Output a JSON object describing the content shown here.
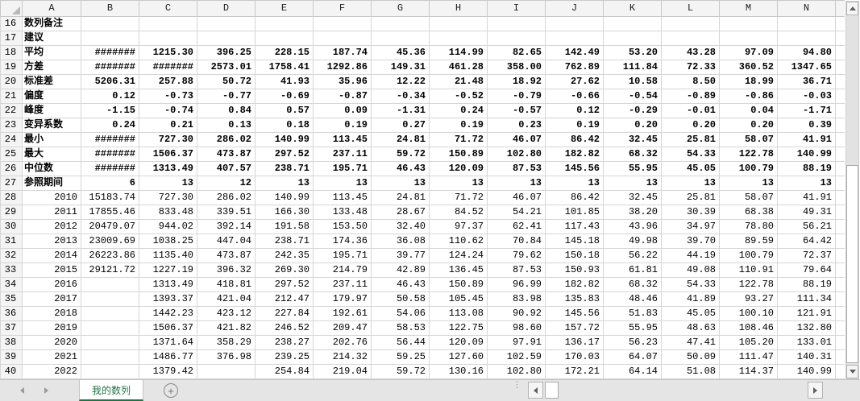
{
  "app": {
    "title": "spreadsheet-statistics-view"
  },
  "colors": {
    "accent_green": "#217346",
    "blue_value_text": "#1414cc",
    "grid_line": "#d6d6d6",
    "header_bg": "#f4f4f4",
    "tab_bar_bg": "#e5e5e5"
  },
  "icons": {
    "add_sheet": "+",
    "tab_splitter": "⋮",
    "select_all_corner": "corner-triangle",
    "scroll_arrows": "triangle-glyphs"
  },
  "grid": {
    "column_headers": [
      "A",
      "B",
      "C",
      "D",
      "E",
      "F",
      "G",
      "H",
      "I",
      "J",
      "K",
      "L",
      "M",
      "N"
    ],
    "rows": [
      {
        "num": "16",
        "a": "数列备注",
        "bold": true,
        "cells": [
          "",
          "",
          "",
          "",
          "",
          "",
          "",
          "",
          "",
          "",
          "",
          "",
          ""
        ]
      },
      {
        "num": "17",
        "a": "建议",
        "bold": true,
        "cells": [
          "",
          "",
          "",
          "",
          "",
          "",
          "",
          "",
          "",
          "",
          "",
          "",
          ""
        ]
      },
      {
        "num": "18",
        "a": "平均",
        "bold": true,
        "cells": [
          "#######",
          "1215.30",
          "396.25",
          "228.15",
          "187.74",
          "45.36",
          "114.99",
          "82.65",
          "142.49",
          "53.20",
          "43.28",
          "97.09",
          "94.80"
        ]
      },
      {
        "num": "19",
        "a": "方差",
        "bold": true,
        "cells": [
          "#######",
          "#######",
          "2573.01",
          "1758.41",
          "1292.86",
          "149.31",
          "461.28",
          "358.00",
          "762.89",
          "111.84",
          "72.33",
          "360.52",
          "1347.65"
        ]
      },
      {
        "num": "20",
        "a": "标准差",
        "bold": true,
        "cells": [
          "5206.31",
          "257.88",
          "50.72",
          "41.93",
          "35.96",
          "12.22",
          "21.48",
          "18.92",
          "27.62",
          "10.58",
          "8.50",
          "18.99",
          "36.71"
        ]
      },
      {
        "num": "21",
        "a": "偏度",
        "bold": true,
        "cells": [
          "0.12",
          "-0.73",
          "-0.77",
          "-0.69",
          "-0.87",
          "-0.34",
          "-0.52",
          "-0.79",
          "-0.66",
          "-0.54",
          "-0.89",
          "-0.86",
          "-0.03"
        ]
      },
      {
        "num": "22",
        "a": "峰度",
        "bold": true,
        "cells": [
          "-1.15",
          "-0.74",
          "0.84",
          "0.57",
          "0.09",
          "-1.31",
          "0.24",
          "-0.57",
          "0.12",
          "-0.29",
          "-0.01",
          "0.04",
          "-1.71"
        ]
      },
      {
        "num": "23",
        "a": "变异系数",
        "bold": true,
        "cells": [
          "0.24",
          "0.21",
          "0.13",
          "0.18",
          "0.19",
          "0.27",
          "0.19",
          "0.23",
          "0.19",
          "0.20",
          "0.20",
          "0.20",
          "0.39"
        ]
      },
      {
        "num": "24",
        "a": "最小",
        "bold": true,
        "cells": [
          "#######",
          "727.30",
          "286.02",
          "140.99",
          "113.45",
          "24.81",
          "71.72",
          "46.07",
          "86.42",
          "32.45",
          "25.81",
          "58.07",
          "41.91"
        ]
      },
      {
        "num": "25",
        "a": "最大",
        "bold": true,
        "cells": [
          "#######",
          "1506.37",
          "473.87",
          "297.52",
          "237.11",
          "59.72",
          "150.89",
          "102.80",
          "182.82",
          "68.32",
          "54.33",
          "122.78",
          "140.99"
        ]
      },
      {
        "num": "26",
        "a": "中位数",
        "bold": true,
        "cells": [
          "#######",
          "1313.49",
          "407.57",
          "238.71",
          "195.71",
          "46.43",
          "120.09",
          "87.53",
          "145.56",
          "55.95",
          "45.05",
          "100.79",
          "88.19"
        ]
      },
      {
        "num": "27",
        "a": "参照期间",
        "bold": true,
        "cells": [
          "6",
          "13",
          "12",
          "13",
          "13",
          "13",
          "13",
          "13",
          "13",
          "13",
          "13",
          "13",
          "13"
        ]
      },
      {
        "num": "28",
        "a": "2010",
        "cells": [
          "15183.74",
          "727.30",
          "286.02",
          "140.99",
          "113.45",
          "24.81",
          "71.72",
          "46.07",
          "86.42",
          "32.45",
          "25.81",
          "58.07",
          "41.91"
        ]
      },
      {
        "num": "29",
        "a": "2011",
        "cells": [
          "17855.46",
          "833.48",
          "339.51",
          "166.30",
          "133.48",
          "28.67",
          "84.52",
          "54.21",
          "101.85",
          "38.20",
          "30.39",
          "68.38",
          "49.31"
        ]
      },
      {
        "num": "30",
        "a": "2012",
        "cells": [
          "20479.07",
          "944.02",
          "392.14",
          "191.58",
          "153.50",
          "32.40",
          "97.37",
          "62.41",
          "117.43",
          "43.96",
          "34.97",
          "78.80",
          "56.21"
        ]
      },
      {
        "num": "31",
        "a": "2013",
        "cells": [
          "23009.69",
          "1038.25",
          "447.04",
          "238.71",
          "174.36",
          "36.08",
          "110.62",
          "70.84",
          "145.18",
          "49.98",
          "39.70",
          "89.59",
          "64.42"
        ]
      },
      {
        "num": "32",
        "a": "2014",
        "cells": [
          "26223.86",
          "1135.40",
          "473.87",
          "242.35",
          "195.71",
          "39.77",
          "124.24",
          "79.62",
          "150.18",
          "56.22",
          "44.19",
          "100.79",
          "72.37"
        ]
      },
      {
        "num": "33",
        "a": "2015",
        "cells": [
          "29121.72",
          "1227.19",
          "396.32",
          "269.30",
          "214.79",
          "42.89",
          "136.45",
          "87.53",
          "150.93",
          "61.81",
          "49.08",
          "110.91",
          "79.64"
        ]
      },
      {
        "num": "34",
        "a": "2016",
        "cells": [
          "",
          "1313.49",
          "418.81",
          "297.52",
          "237.11",
          "46.43",
          "150.89",
          "96.99",
          "182.82",
          "68.32",
          "54.33",
          "122.78",
          "88.19"
        ]
      },
      {
        "num": "35",
        "a": "2017",
        "cells": [
          "",
          "1393.37",
          "421.04",
          "212.47",
          "179.97",
          "50.58",
          "105.45",
          "83.98",
          "135.83",
          "48.46",
          "41.89",
          "93.27",
          "111.34"
        ]
      },
      {
        "num": "36",
        "a": "2018",
        "cells": [
          "",
          "1442.23",
          "423.12",
          "227.84",
          "192.61",
          "54.06",
          "113.08",
          "90.92",
          "145.56",
          "51.83",
          "45.05",
          "100.10",
          "121.91"
        ]
      },
      {
        "num": "37",
        "a": "2019",
        "cells": [
          "",
          "1506.37",
          "421.82",
          "246.52",
          "209.47",
          "58.53",
          "122.75",
          "98.60",
          "157.72",
          "55.95",
          "48.63",
          "108.46",
          "132.80"
        ]
      },
      {
        "num": "38",
        "a": "2020",
        "cells": [
          "",
          "1371.64",
          "358.29",
          "238.27",
          "202.76",
          "56.44",
          "120.09",
          "97.91",
          "136.17",
          "56.23",
          "47.41",
          "105.20",
          "133.01"
        ]
      },
      {
        "num": "39",
        "a": "2021",
        "cells": [
          "",
          "1486.77",
          "376.98",
          "239.25",
          "214.32",
          "59.25",
          "127.60",
          "102.59",
          "170.03",
          "64.07",
          "50.09",
          "111.47",
          "140.31"
        ]
      },
      {
        "num": "40",
        "a": "2022",
        "blue": true,
        "cells": [
          "",
          "1379.42",
          "",
          "254.84",
          "219.04",
          "59.72",
          "130.16",
          "102.80",
          "172.21",
          "64.14",
          "51.08",
          "114.37",
          "140.99"
        ]
      }
    ]
  },
  "sheet_tabs": {
    "active_label": "我的数列",
    "add_icon": "+",
    "splitter_icon": "⋮"
  }
}
